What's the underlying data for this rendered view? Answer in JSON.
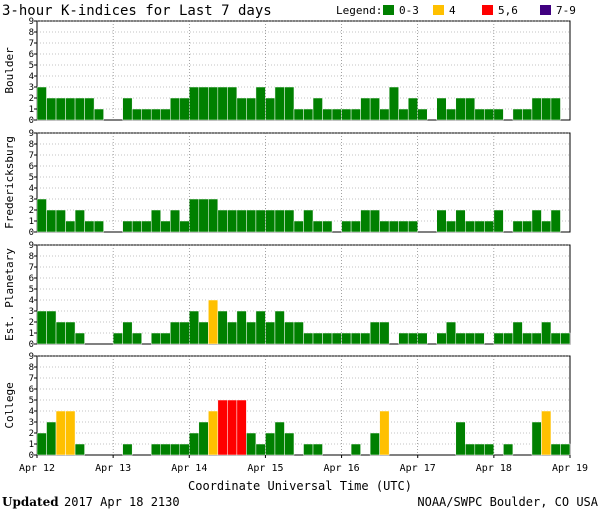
{
  "title": "3-hour K-indices for Last 7 days",
  "legend": {
    "label": "Legend:",
    "items": [
      {
        "label": "0-3",
        "color": "#008000"
      },
      {
        "label": "4",
        "color": "#ffc000"
      },
      {
        "label": "5,6",
        "color": "#ff0000"
      },
      {
        "label": "7-9",
        "color": "#400080"
      }
    ]
  },
  "footer": {
    "updated_label": "Updated",
    "updated_value": "2017 Apr 18 2130",
    "source": "NOAA/SWPC Boulder, CO USA"
  },
  "chart_data": {
    "type": "bar",
    "xlabel": "Coordinate Universal Time (UTC)",
    "x_ticks": [
      "Apr 12",
      "Apr 13",
      "Apr 14",
      "Apr 15",
      "Apr 16",
      "Apr 17",
      "Apr 18",
      "Apr 19"
    ],
    "y_ticks": [
      "0",
      "1",
      "2",
      "3",
      "4",
      "5",
      "6",
      "7",
      "8",
      "9"
    ],
    "ylim": [
      0,
      9
    ],
    "bars_per_day": 8,
    "panels": [
      {
        "name": "Boulder",
        "values": [
          3,
          2,
          2,
          2,
          2,
          2,
          1,
          0,
          0,
          2,
          1,
          1,
          1,
          1,
          2,
          2,
          3,
          3,
          3,
          3,
          3,
          2,
          2,
          3,
          2,
          3,
          3,
          1,
          1,
          2,
          1,
          1,
          1,
          1,
          2,
          2,
          1,
          3,
          1,
          2,
          1,
          0,
          2,
          1,
          2,
          2,
          1,
          1,
          1,
          0,
          1,
          1,
          2,
          2,
          2,
          0
        ]
      },
      {
        "name": "Fredericksburg",
        "values": [
          3,
          2,
          2,
          1,
          2,
          1,
          1,
          0,
          0,
          1,
          1,
          1,
          2,
          1,
          2,
          1,
          3,
          3,
          3,
          2,
          2,
          2,
          2,
          2,
          2,
          2,
          2,
          1,
          2,
          1,
          1,
          0,
          1,
          1,
          2,
          2,
          1,
          1,
          1,
          1,
          0,
          0,
          2,
          1,
          2,
          1,
          1,
          1,
          2,
          0,
          1,
          1,
          2,
          1,
          2,
          0
        ]
      },
      {
        "name": "Est. Planetary",
        "values": [
          3,
          3,
          2,
          2,
          1,
          0,
          0,
          0,
          1,
          2,
          1,
          0,
          1,
          1,
          2,
          2,
          3,
          2,
          4,
          3,
          2,
          3,
          2,
          3,
          2,
          3,
          2,
          2,
          1,
          1,
          1,
          1,
          1,
          1,
          1,
          2,
          2,
          0,
          1,
          1,
          1,
          0,
          1,
          2,
          1,
          1,
          1,
          0,
          1,
          1,
          2,
          1,
          1,
          2,
          1,
          1
        ]
      },
      {
        "name": "College",
        "values": [
          2,
          3,
          4,
          4,
          1,
          0,
          0,
          0,
          0,
          1,
          0,
          0,
          1,
          1,
          1,
          1,
          2,
          3,
          4,
          5,
          5,
          5,
          2,
          1,
          2,
          3,
          2,
          0,
          1,
          1,
          0,
          0,
          0,
          1,
          0,
          2,
          4,
          0,
          0,
          0,
          0,
          0,
          0,
          0,
          3,
          1,
          1,
          1,
          0,
          1,
          0,
          0,
          3,
          4,
          1,
          1
        ]
      }
    ]
  }
}
